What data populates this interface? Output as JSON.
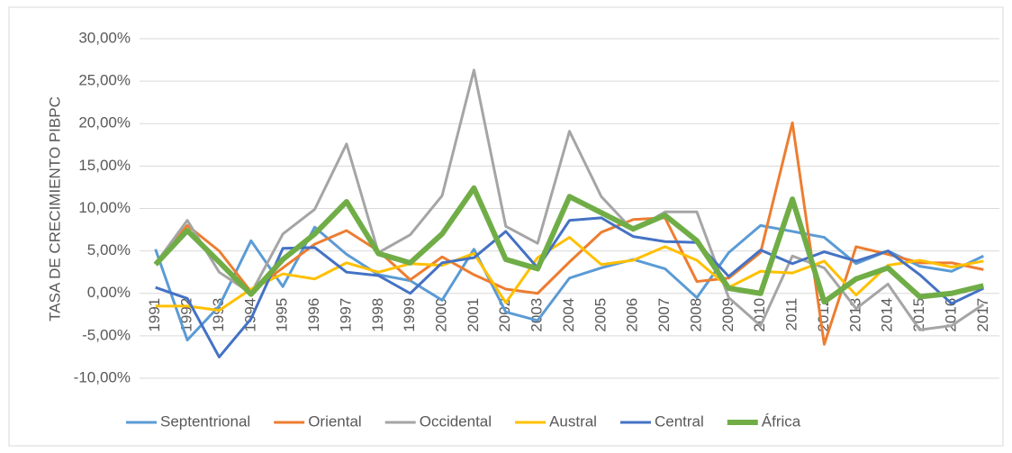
{
  "chart_data": {
    "type": "line",
    "y_axis_label": "TASA DE CRECIMIENTO PIBPC",
    "categories": [
      "1991",
      "1992",
      "1993",
      "1994",
      "1995",
      "1996",
      "1997",
      "1998",
      "1999",
      "2000",
      "2001",
      "2002",
      "2003",
      "2004",
      "2005",
      "2006",
      "2007",
      "2008",
      "2009",
      "2010",
      "2011",
      "2012",
      "2013",
      "2014",
      "2015",
      "2016",
      "2017"
    ],
    "series": [
      {
        "name": "Septentrional",
        "color": "#5b9bd5",
        "line_width": 3,
        "values": [
          5.2,
          -5.5,
          -1.5,
          6.2,
          0.8,
          7.8,
          4.6,
          2.2,
          1.5,
          -0.8,
          5.2,
          -2.2,
          -3.2,
          1.8,
          3.0,
          4.0,
          2.9,
          -0.5,
          4.8,
          8.0,
          7.3,
          6.6,
          3.5,
          5.0,
          3.2,
          2.6,
          4.4
        ]
      },
      {
        "name": "Oriental",
        "color": "#ed7d31",
        "line_width": 3,
        "values": [
          3.5,
          8.0,
          5.0,
          0.2,
          3.0,
          5.8,
          7.4,
          5.0,
          1.6,
          4.3,
          2.2,
          0.5,
          0.0,
          3.7,
          7.2,
          8.7,
          8.9,
          1.4,
          1.8,
          4.8,
          20.1,
          -6.0,
          5.5,
          4.6,
          3.6,
          3.6,
          2.8
        ]
      },
      {
        "name": "Occidental",
        "color": "#a5a5a5",
        "line_width": 3,
        "values": [
          3.5,
          8.6,
          2.5,
          0.0,
          7.0,
          9.9,
          17.6,
          4.8,
          6.9,
          11.5,
          26.3,
          7.9,
          5.9,
          19.1,
          11.4,
          7.4,
          9.6,
          9.6,
          -0.5,
          -3.8,
          4.4,
          3.0,
          -1.8,
          1.1,
          -4.3,
          -3.8,
          -1.3
        ]
      },
      {
        "name": "Austral",
        "color": "#ffc000",
        "line_width": 3,
        "values": [
          -1.5,
          -1.5,
          -2.0,
          0.5,
          2.3,
          1.7,
          3.6,
          2.5,
          3.5,
          3.3,
          4.7,
          -1.1,
          4.2,
          6.6,
          3.4,
          3.9,
          5.5,
          3.9,
          0.7,
          2.6,
          2.4,
          3.8,
          -0.2,
          3.3,
          3.9,
          3.1,
          3.8
        ]
      },
      {
        "name": "Central",
        "color": "#4472c4",
        "line_width": 3,
        "values": [
          0.7,
          -0.6,
          -7.5,
          -3.0,
          5.3,
          5.4,
          2.5,
          2.1,
          0.0,
          3.6,
          4.2,
          7.3,
          3.0,
          8.6,
          8.9,
          6.7,
          6.1,
          6.0,
          2.0,
          5.1,
          3.5,
          4.9,
          3.8,
          5.0,
          2.2,
          -1.2,
          0.6
        ]
      },
      {
        "name": "África",
        "color": "#70ad47",
        "line_width": 6,
        "values": [
          3.4,
          7.4,
          3.7,
          -0.1,
          4.0,
          7.0,
          10.8,
          4.7,
          3.6,
          7.0,
          12.4,
          4.0,
          2.9,
          11.4,
          9.5,
          7.6,
          9.2,
          6.2,
          0.6,
          0.0,
          11.1,
          -1.0,
          1.7,
          3.0,
          -0.4,
          0.0,
          0.9
        ]
      }
    ],
    "ylim": [
      -10,
      30
    ],
    "yticks": [
      {
        "value": -10,
        "label": "-10,00%"
      },
      {
        "value": -5,
        "label": "-5,00%"
      },
      {
        "value": 0,
        "label": "0,00%"
      },
      {
        "value": 5,
        "label": "5,00%"
      },
      {
        "value": 10,
        "label": "10,00%"
      },
      {
        "value": 15,
        "label": "15,00%"
      },
      {
        "value": 20,
        "label": "20,00%"
      },
      {
        "value": 25,
        "label": "25,00%"
      },
      {
        "value": 30,
        "label": "30,00%"
      }
    ],
    "grid": true,
    "legend": "bottom"
  }
}
